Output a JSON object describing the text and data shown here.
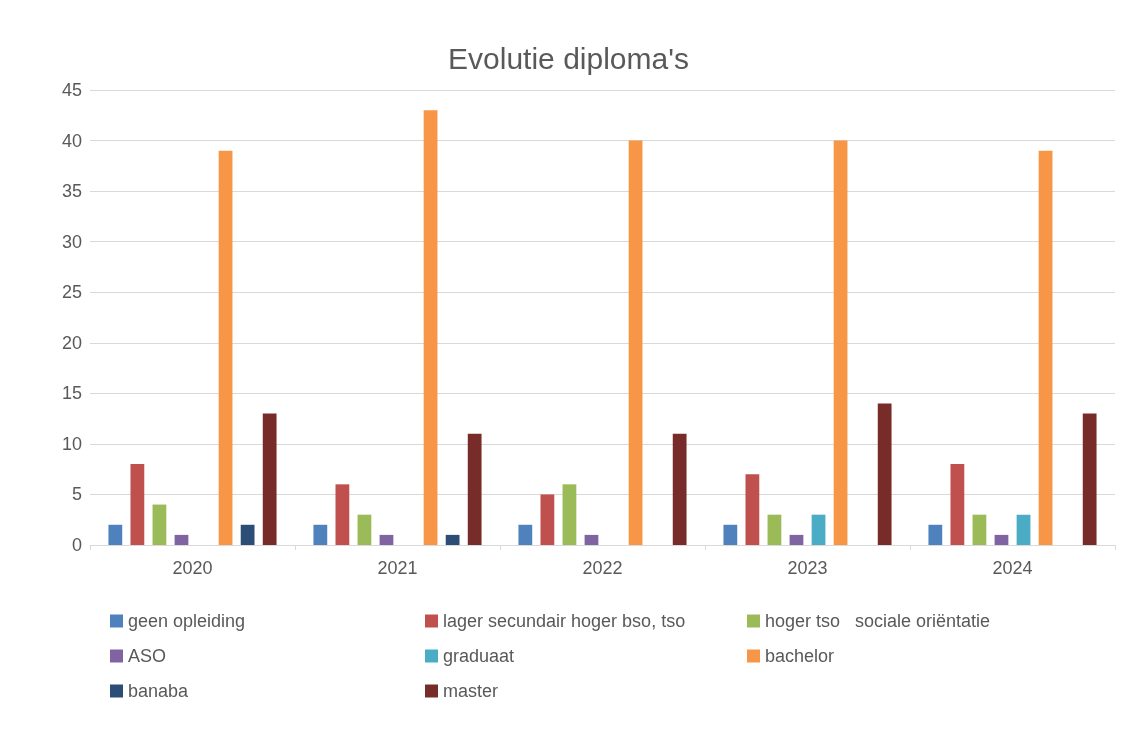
{
  "chart_data": {
    "type": "bar",
    "title": "Evolutie diploma's",
    "categories": [
      "2020",
      "2021",
      "2022",
      "2023",
      "2024"
    ],
    "series": [
      {
        "name": "geen opleiding",
        "color": "#4f81bd",
        "values": [
          2,
          2,
          2,
          2,
          2
        ]
      },
      {
        "name": "lager secundair hoger bso, tso",
        "color": "#c0504d",
        "values": [
          8,
          6,
          5,
          7,
          8
        ]
      },
      {
        "name": "hoger tso   sociale oriëntatie",
        "color": "#9bbb59",
        "values": [
          4,
          3,
          6,
          3,
          3
        ]
      },
      {
        "name": "ASO",
        "color": "#8064a2",
        "values": [
          1,
          1,
          1,
          1,
          1
        ]
      },
      {
        "name": "graduaat",
        "color": "#4bacc6",
        "values": [
          0,
          0,
          0,
          3,
          3
        ]
      },
      {
        "name": "bachelor",
        "color": "#f79646",
        "values": [
          39,
          43,
          40,
          40,
          39
        ]
      },
      {
        "name": "banaba",
        "color": "#2c4d75",
        "values": [
          2,
          1,
          0,
          0,
          0
        ]
      },
      {
        "name": "master",
        "color": "#772c2a",
        "values": [
          13,
          11,
          11,
          14,
          13
        ]
      }
    ],
    "ylim": [
      0,
      45
    ],
    "yticks": [
      0,
      5,
      10,
      15,
      20,
      25,
      30,
      35,
      40,
      45
    ],
    "grid": "y",
    "legend": "bottom"
  }
}
